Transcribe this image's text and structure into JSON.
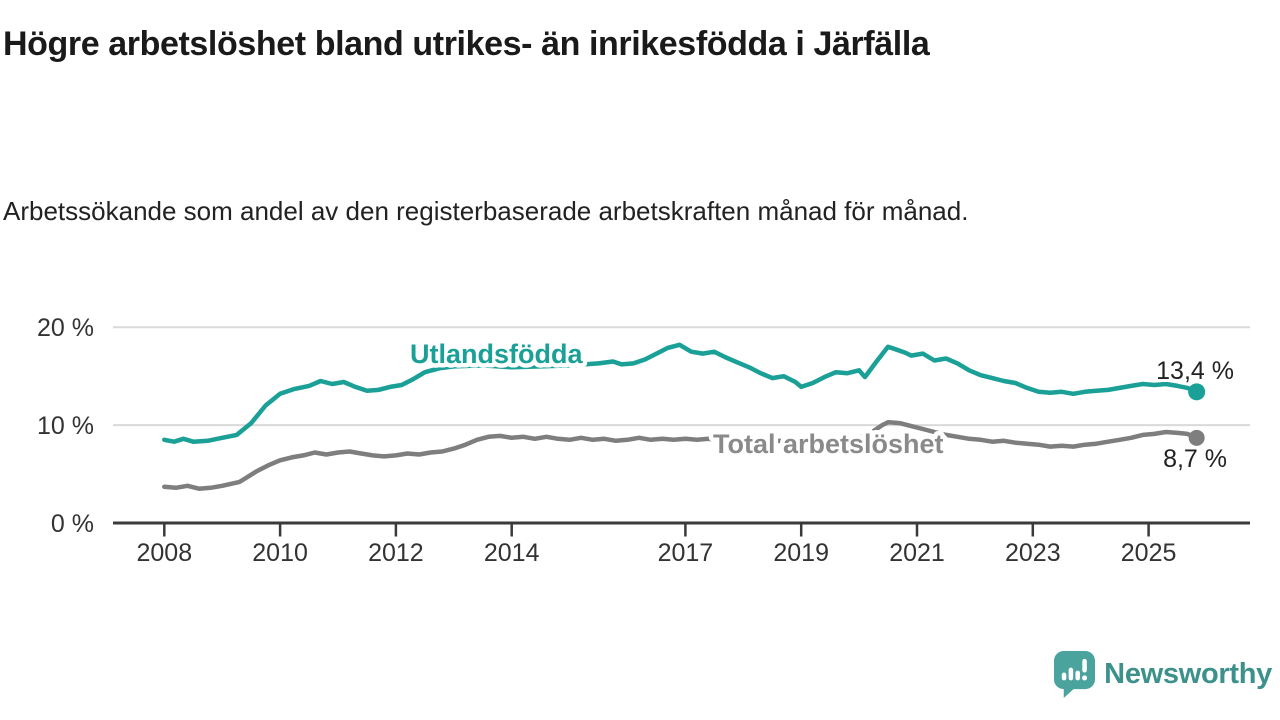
{
  "header": {
    "title": "Högre arbetslöshet bland utrikes- än inrikesfödda i Järfälla",
    "subtitle": "Arbetssökande som andel av den registerbaserade arbetskraften månad för månad."
  },
  "colors": {
    "accent_teal": "#1aa096",
    "series_gray": "#7e7e7e",
    "label_gray": "#8a8a8a",
    "axis_dark": "#3a3a3a",
    "grid_light": "#d9d9d9",
    "text_dark": "#222222",
    "logo_bubble": "#4aa39c",
    "logo_text": "#3c918b"
  },
  "chart_data": {
    "type": "line",
    "title": "Högre arbetslöshet bland utrikes- än inrikesfödda i Järfälla",
    "xlabel": "",
    "ylabel": "",
    "unit": "%",
    "grid": "horizontal",
    "legend_position": "inline-labels",
    "xlim": [
      2007.1,
      2026.75
    ],
    "ylim": [
      0,
      20
    ],
    "yticks": [
      {
        "value": 0,
        "label": "0 %"
      },
      {
        "value": 10,
        "label": "10 %"
      },
      {
        "value": 20,
        "label": "20 %"
      }
    ],
    "xticks": [
      {
        "value": 2008,
        "label": "2008"
      },
      {
        "value": 2010,
        "label": "2010"
      },
      {
        "value": 2012,
        "label": "2012"
      },
      {
        "value": 2014,
        "label": "2014"
      },
      {
        "value": 2017,
        "label": "2017"
      },
      {
        "value": 2019,
        "label": "2019"
      },
      {
        "value": 2021,
        "label": "2021"
      },
      {
        "value": 2023,
        "label": "2023"
      },
      {
        "value": 2025,
        "label": "2025"
      }
    ],
    "series": [
      {
        "name": "Utlandsfödda",
        "color": "#1aa096",
        "end_value": 13.4,
        "end_label": "13,4 %",
        "points": [
          [
            2008.0,
            8.5
          ],
          [
            2008.17,
            8.3
          ],
          [
            2008.33,
            8.6
          ],
          [
            2008.5,
            8.3
          ],
          [
            2008.75,
            8.4
          ],
          [
            2009.0,
            8.7
          ],
          [
            2009.25,
            9.0
          ],
          [
            2009.5,
            10.2
          ],
          [
            2009.75,
            12.0
          ],
          [
            2010.0,
            13.2
          ],
          [
            2010.25,
            13.7
          ],
          [
            2010.5,
            14.0
          ],
          [
            2010.7,
            14.5
          ],
          [
            2010.9,
            14.2
          ],
          [
            2011.1,
            14.4
          ],
          [
            2011.3,
            13.9
          ],
          [
            2011.5,
            13.5
          ],
          [
            2011.7,
            13.6
          ],
          [
            2011.9,
            13.9
          ],
          [
            2012.1,
            14.1
          ],
          [
            2012.3,
            14.7
          ],
          [
            2012.5,
            15.4
          ],
          [
            2012.75,
            15.8
          ],
          [
            2013.0,
            16.0
          ],
          [
            2013.5,
            16.1
          ],
          [
            2014.0,
            15.9
          ],
          [
            2014.5,
            16.0
          ],
          [
            2015.0,
            16.1
          ],
          [
            2015.5,
            16.3
          ],
          [
            2015.75,
            16.5
          ],
          [
            2015.9,
            16.2
          ],
          [
            2016.1,
            16.3
          ],
          [
            2016.3,
            16.7
          ],
          [
            2016.5,
            17.3
          ],
          [
            2016.7,
            17.9
          ],
          [
            2016.9,
            18.2
          ],
          [
            2017.1,
            17.5
          ],
          [
            2017.3,
            17.3
          ],
          [
            2017.5,
            17.5
          ],
          [
            2017.7,
            16.9
          ],
          [
            2017.9,
            16.4
          ],
          [
            2018.1,
            15.9
          ],
          [
            2018.3,
            15.3
          ],
          [
            2018.5,
            14.8
          ],
          [
            2018.7,
            15.0
          ],
          [
            2018.9,
            14.4
          ],
          [
            2019.0,
            13.9
          ],
          [
            2019.2,
            14.3
          ],
          [
            2019.4,
            14.9
          ],
          [
            2019.6,
            15.4
          ],
          [
            2019.8,
            15.3
          ],
          [
            2020.0,
            15.6
          ],
          [
            2020.1,
            14.9
          ],
          [
            2020.3,
            16.5
          ],
          [
            2020.5,
            18.0
          ],
          [
            2020.6,
            17.8
          ],
          [
            2020.8,
            17.4
          ],
          [
            2020.9,
            17.1
          ],
          [
            2021.1,
            17.3
          ],
          [
            2021.3,
            16.6
          ],
          [
            2021.5,
            16.8
          ],
          [
            2021.7,
            16.3
          ],
          [
            2021.9,
            15.6
          ],
          [
            2022.1,
            15.1
          ],
          [
            2022.3,
            14.8
          ],
          [
            2022.5,
            14.5
          ],
          [
            2022.7,
            14.3
          ],
          [
            2022.9,
            13.8
          ],
          [
            2023.1,
            13.4
          ],
          [
            2023.3,
            13.3
          ],
          [
            2023.5,
            13.4
          ],
          [
            2023.7,
            13.2
          ],
          [
            2023.9,
            13.4
          ],
          [
            2024.1,
            13.5
          ],
          [
            2024.3,
            13.6
          ],
          [
            2024.5,
            13.8
          ],
          [
            2024.7,
            14.0
          ],
          [
            2024.9,
            14.2
          ],
          [
            2025.1,
            14.1
          ],
          [
            2025.3,
            14.2
          ],
          [
            2025.5,
            14.0
          ],
          [
            2025.67,
            13.8
          ],
          [
            2025.83,
            13.4
          ]
        ]
      },
      {
        "name": "Total arbetslöshet",
        "color": "#7e7e7e",
        "end_value": 8.7,
        "end_label": "8,7 %",
        "points": [
          [
            2008.0,
            3.7
          ],
          [
            2008.2,
            3.6
          ],
          [
            2008.4,
            3.8
          ],
          [
            2008.6,
            3.5
          ],
          [
            2008.8,
            3.6
          ],
          [
            2009.0,
            3.8
          ],
          [
            2009.3,
            4.2
          ],
          [
            2009.6,
            5.3
          ],
          [
            2009.8,
            5.9
          ],
          [
            2010.0,
            6.4
          ],
          [
            2010.2,
            6.7
          ],
          [
            2010.4,
            6.9
          ],
          [
            2010.6,
            7.2
          ],
          [
            2010.8,
            7.0
          ],
          [
            2011.0,
            7.2
          ],
          [
            2011.2,
            7.3
          ],
          [
            2011.4,
            7.1
          ],
          [
            2011.6,
            6.9
          ],
          [
            2011.8,
            6.8
          ],
          [
            2012.0,
            6.9
          ],
          [
            2012.2,
            7.1
          ],
          [
            2012.4,
            7.0
          ],
          [
            2012.6,
            7.2
          ],
          [
            2012.8,
            7.3
          ],
          [
            2013.0,
            7.6
          ],
          [
            2013.2,
            8.0
          ],
          [
            2013.4,
            8.5
          ],
          [
            2013.6,
            8.8
          ],
          [
            2013.8,
            8.9
          ],
          [
            2014.0,
            8.7
          ],
          [
            2014.2,
            8.8
          ],
          [
            2014.4,
            8.6
          ],
          [
            2014.6,
            8.8
          ],
          [
            2014.8,
            8.6
          ],
          [
            2015.0,
            8.5
          ],
          [
            2015.2,
            8.7
          ],
          [
            2015.4,
            8.5
          ],
          [
            2015.6,
            8.6
          ],
          [
            2015.8,
            8.4
          ],
          [
            2016.0,
            8.5
          ],
          [
            2016.2,
            8.7
          ],
          [
            2016.4,
            8.5
          ],
          [
            2016.6,
            8.6
          ],
          [
            2016.8,
            8.5
          ],
          [
            2017.0,
            8.6
          ],
          [
            2017.2,
            8.5
          ],
          [
            2017.4,
            8.6
          ],
          [
            2017.6,
            8.4
          ],
          [
            2017.8,
            8.5
          ],
          [
            2018.0,
            8.6
          ],
          [
            2018.2,
            8.4
          ],
          [
            2018.4,
            8.3
          ],
          [
            2018.6,
            8.4
          ],
          [
            2018.8,
            8.3
          ],
          [
            2019.0,
            8.2
          ],
          [
            2019.2,
            8.3
          ],
          [
            2019.4,
            8.4
          ],
          [
            2019.6,
            8.5
          ],
          [
            2019.8,
            8.6
          ],
          [
            2020.0,
            8.7
          ],
          [
            2020.2,
            9.2
          ],
          [
            2020.4,
            10.0
          ],
          [
            2020.5,
            10.3
          ],
          [
            2020.7,
            10.2
          ],
          [
            2020.9,
            9.9
          ],
          [
            2021.1,
            9.6
          ],
          [
            2021.3,
            9.3
          ],
          [
            2021.5,
            9.0
          ],
          [
            2021.7,
            8.8
          ],
          [
            2021.9,
            8.6
          ],
          [
            2022.1,
            8.5
          ],
          [
            2022.3,
            8.3
          ],
          [
            2022.5,
            8.4
          ],
          [
            2022.7,
            8.2
          ],
          [
            2022.9,
            8.1
          ],
          [
            2023.1,
            8.0
          ],
          [
            2023.3,
            7.8
          ],
          [
            2023.5,
            7.9
          ],
          [
            2023.7,
            7.8
          ],
          [
            2023.9,
            8.0
          ],
          [
            2024.1,
            8.1
          ],
          [
            2024.3,
            8.3
          ],
          [
            2024.5,
            8.5
          ],
          [
            2024.7,
            8.7
          ],
          [
            2024.9,
            9.0
          ],
          [
            2025.1,
            9.1
          ],
          [
            2025.3,
            9.3
          ],
          [
            2025.5,
            9.2
          ],
          [
            2025.67,
            9.1
          ],
          [
            2025.83,
            8.7
          ]
        ]
      }
    ]
  },
  "footer": {
    "brand": "Newsworthy",
    "logo_icon": "newsworthy-speech-bubble-barchart-icon"
  }
}
